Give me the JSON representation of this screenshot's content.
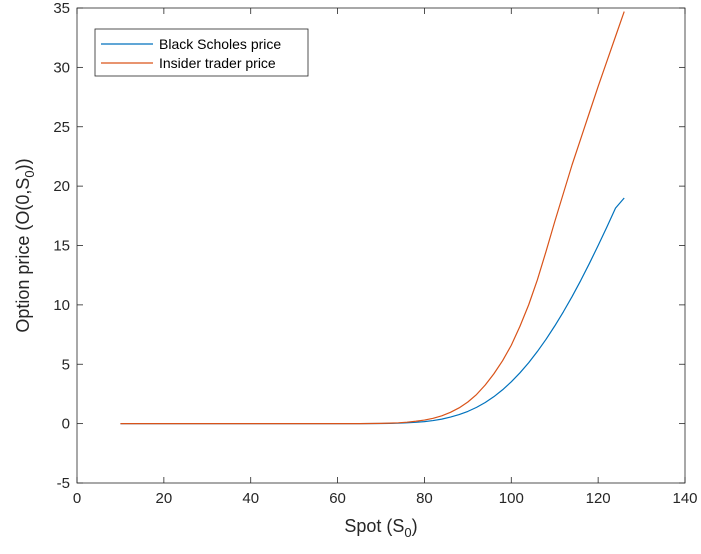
{
  "chart_data": {
    "type": "line",
    "title": "",
    "xlabel": {
      "main": "Spot (S",
      "sub": "0",
      "tail": ")"
    },
    "ylabel": {
      "main": "Option price (O(0,S",
      "sub": "0",
      "tail": "))"
    },
    "xlim": [
      0,
      140
    ],
    "ylim": [
      -5,
      35
    ],
    "xticks": [
      0,
      20,
      40,
      60,
      80,
      100,
      120,
      140
    ],
    "yticks": [
      -5,
      0,
      5,
      10,
      15,
      20,
      25,
      30,
      35
    ],
    "grid": false,
    "legend": "top-left",
    "series": [
      {
        "name": "Black Scholes price",
        "color": "#0072BD",
        "x": [
          10,
          20,
          30,
          40,
          50,
          60,
          65,
          70,
          72,
          74,
          76,
          78,
          80,
          82,
          84,
          86,
          88,
          90,
          92,
          94,
          96,
          98,
          100,
          102,
          104,
          106,
          108,
          110,
          112,
          114,
          116,
          118,
          120,
          122,
          124,
          126
        ],
        "y": [
          0,
          0,
          0,
          0,
          0,
          0,
          0,
          0.01,
          0.02,
          0.04,
          0.07,
          0.11,
          0.17,
          0.26,
          0.38,
          0.55,
          0.76,
          1.03,
          1.37,
          1.78,
          2.27,
          2.85,
          3.52,
          4.28,
          5.13,
          6.07,
          7.1,
          8.22,
          9.42,
          10.7,
          12.06,
          13.5,
          15.0,
          16.55,
          18.15,
          19.0
        ]
      },
      {
        "name": "Insider trader price",
        "color": "#D95319",
        "x": [
          10,
          20,
          30,
          40,
          50,
          60,
          65,
          70,
          72,
          74,
          76,
          78,
          80,
          82,
          84,
          86,
          88,
          90,
          92,
          94,
          96,
          98,
          100,
          102,
          104,
          106,
          108,
          110,
          112,
          114,
          116,
          118,
          120,
          122,
          124,
          126
        ],
        "y": [
          0,
          0,
          0,
          0,
          0,
          0,
          0,
          0.02,
          0.04,
          0.07,
          0.12,
          0.2,
          0.3,
          0.45,
          0.66,
          0.95,
          1.33,
          1.82,
          2.45,
          3.25,
          4.2,
          5.3,
          6.6,
          8.2,
          10.0,
          12.1,
          14.5,
          17.0,
          19.4,
          21.8,
          24.0,
          26.2,
          28.4,
          30.5,
          32.6,
          34.7
        ]
      }
    ]
  }
}
